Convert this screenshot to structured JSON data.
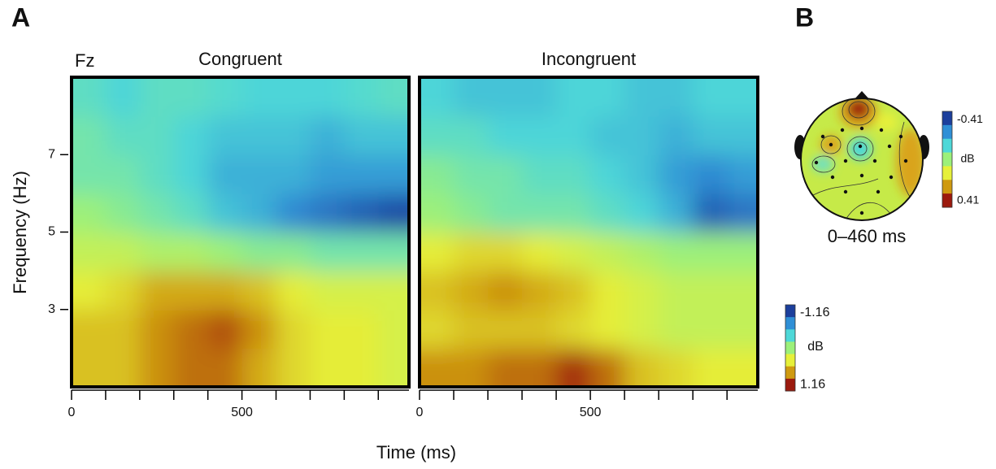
{
  "panel_labels": [
    "A",
    "B"
  ],
  "colormap": [
    "#1c3f9c",
    "#2f8fd6",
    "#4ed8d8",
    "#9cf07a",
    "#e6f03a",
    "#cf9a10",
    "#9c1a0e"
  ],
  "chart_data": [
    {
      "type": "heatmap",
      "title": "Congruent",
      "channel": "Fz",
      "xlabel": "Time (ms)",
      "ylabel": "Frequency (Hz)",
      "x": [
        50,
        150,
        250,
        350,
        450,
        550,
        650,
        750,
        850,
        950
      ],
      "y": [
        1.5,
        2.5,
        3.5,
        4.5,
        5.5,
        6.5,
        7.5,
        8.5
      ],
      "z": [
        [
          0.6,
          0.6,
          0.8,
          0.9,
          0.9,
          0.7,
          0.5,
          0.4,
          0.4,
          0.3
        ],
        [
          0.6,
          0.6,
          0.8,
          0.9,
          1.0,
          0.8,
          0.5,
          0.4,
          0.4,
          0.3
        ],
        [
          0.4,
          0.5,
          0.7,
          0.7,
          0.7,
          0.6,
          0.4,
          0.3,
          0.3,
          0.3
        ],
        [
          0.2,
          0.2,
          0.1,
          0.1,
          0,
          -0.1,
          -0.1,
          -0.2,
          -0.2,
          -0.2
        ],
        [
          0,
          -0.1,
          -0.2,
          -0.3,
          -0.5,
          -0.6,
          -0.8,
          -0.9,
          -1.0,
          -1.1
        ],
        [
          -0.2,
          -0.2,
          -0.3,
          -0.4,
          -0.6,
          -0.6,
          -0.6,
          -0.7,
          -0.7,
          -0.7
        ],
        [
          -0.2,
          -0.3,
          -0.3,
          -0.4,
          -0.5,
          -0.5,
          -0.5,
          -0.6,
          -0.5,
          -0.5
        ],
        [
          -0.3,
          -0.4,
          -0.3,
          -0.3,
          -0.35,
          -0.4,
          -0.4,
          -0.4,
          -0.35,
          -0.3
        ]
      ],
      "xlim": [
        0,
        990
      ],
      "ylim": [
        1,
        9
      ],
      "xticks": [
        0,
        500
      ],
      "xminor_ticks": [
        100,
        200,
        300,
        400,
        600,
        700,
        800,
        900
      ],
      "yticks": [
        3,
        5,
        7
      ],
      "zlim": [
        -1.16,
        1.16
      ],
      "zlabel": "dB"
    },
    {
      "type": "heatmap",
      "title": "Incongruent",
      "x": [
        50,
        150,
        250,
        350,
        450,
        550,
        650,
        750,
        850,
        950
      ],
      "y": [
        1.5,
        2.5,
        3.5,
        4.5,
        5.5,
        6.5,
        7.5,
        8.5
      ],
      "z": [
        [
          0.8,
          0.8,
          0.9,
          0.9,
          1.1,
          0.9,
          0.6,
          0.5,
          0.4,
          0.4
        ],
        [
          0.5,
          0.6,
          0.6,
          0.6,
          0.5,
          0.4,
          0.3,
          0.2,
          0.2,
          0.2
        ],
        [
          0.6,
          0.7,
          0.8,
          0.7,
          0.6,
          0.4,
          0.3,
          0.2,
          0.2,
          0.2
        ],
        [
          0.4,
          0.5,
          0.5,
          0.4,
          0.3,
          0.2,
          0.1,
          0,
          0,
          0
        ],
        [
          0,
          -0.1,
          -0.2,
          -0.2,
          -0.2,
          -0.3,
          -0.4,
          -0.6,
          -1.0,
          -0.9
        ],
        [
          -0.1,
          -0.2,
          -0.2,
          -0.3,
          -0.3,
          -0.4,
          -0.5,
          -0.7,
          -0.8,
          -0.7
        ],
        [
          -0.3,
          -0.3,
          -0.4,
          -0.4,
          -0.4,
          -0.5,
          -0.5,
          -0.6,
          -0.5,
          -0.5
        ],
        [
          -0.4,
          -0.5,
          -0.5,
          -0.5,
          -0.4,
          -0.4,
          -0.5,
          -0.5,
          -0.4,
          -0.4
        ]
      ],
      "xlim": [
        0,
        990
      ],
      "ylim": [
        1,
        9
      ],
      "xticks": [
        0,
        500
      ],
      "xminor_ticks": [
        100,
        200,
        300,
        400,
        600,
        700,
        800,
        900
      ]
    }
  ],
  "topomap": {
    "zlim": [
      -0.41,
      0.41
    ],
    "zlabel": "dB",
    "caption": "0–460 ms"
  }
}
